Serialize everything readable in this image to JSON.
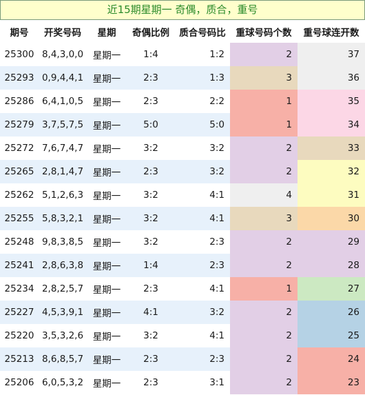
{
  "title": "近15期星期一 奇偶，质合，重号",
  "headers": [
    "期号",
    "开奖号码",
    "星期",
    "奇偶比例",
    "质合号码比",
    "重球号码个数",
    "重号球连开数"
  ],
  "rows": [
    {
      "id": "25300",
      "nums": "8,4,3,0,0",
      "day": "星期一",
      "oe": "1:4",
      "pc": "1:2",
      "rep": "2",
      "repColor": "#e2cfe6",
      "cnt": "37",
      "cntColor": "#efefef"
    },
    {
      "id": "25293",
      "nums": "0,9,4,4,1",
      "day": "星期一",
      "oe": "2:3",
      "pc": "1:3",
      "rep": "3",
      "repColor": "#e8d9bd",
      "cnt": "36",
      "cntColor": "#efefef"
    },
    {
      "id": "25286",
      "nums": "6,4,1,0,5",
      "day": "星期一",
      "oe": "2:3",
      "pc": "2:2",
      "rep": "1",
      "repColor": "#f7b0a7",
      "cnt": "35",
      "cntColor": "#fcd7e6"
    },
    {
      "id": "25279",
      "nums": "3,7,5,7,5",
      "day": "星期一",
      "oe": "5:0",
      "pc": "5:0",
      "rep": "1",
      "repColor": "#f7b0a7",
      "cnt": "34",
      "cntColor": "#fcd7e6"
    },
    {
      "id": "25272",
      "nums": "7,6,7,4,7",
      "day": "星期一",
      "oe": "3:2",
      "pc": "3:2",
      "rep": "2",
      "repColor": "#e2cfe6",
      "cnt": "33",
      "cntColor": "#e8d9bd"
    },
    {
      "id": "25265",
      "nums": "2,8,1,4,7",
      "day": "星期一",
      "oe": "2:3",
      "pc": "3:2",
      "rep": "2",
      "repColor": "#e2cfe6",
      "cnt": "32",
      "cntColor": "#fdfcc0"
    },
    {
      "id": "25262",
      "nums": "5,1,2,6,3",
      "day": "星期一",
      "oe": "3:2",
      "pc": "4:1",
      "rep": "4",
      "repColor": "#efefef",
      "cnt": "31",
      "cntColor": "#fdfcc0"
    },
    {
      "id": "25255",
      "nums": "5,8,3,2,1",
      "day": "星期一",
      "oe": "3:2",
      "pc": "4:1",
      "rep": "3",
      "repColor": "#e8d9bd",
      "cnt": "30",
      "cntColor": "#fbd8a8"
    },
    {
      "id": "25248",
      "nums": "9,8,3,8,5",
      "day": "星期一",
      "oe": "3:2",
      "pc": "2:3",
      "rep": "2",
      "repColor": "#e2cfe6",
      "cnt": "29",
      "cntColor": "#e2cfe6"
    },
    {
      "id": "25241",
      "nums": "2,8,6,3,8",
      "day": "星期一",
      "oe": "1:4",
      "pc": "2:3",
      "rep": "2",
      "repColor": "#e2cfe6",
      "cnt": "28",
      "cntColor": "#e2cfe6"
    },
    {
      "id": "25234",
      "nums": "2,8,2,5,7",
      "day": "星期一",
      "oe": "2:3",
      "pc": "4:1",
      "rep": "1",
      "repColor": "#f7b0a7",
      "cnt": "27",
      "cntColor": "#cce9c2"
    },
    {
      "id": "25227",
      "nums": "4,5,3,9,1",
      "day": "星期一",
      "oe": "4:1",
      "pc": "3:2",
      "rep": "2",
      "repColor": "#e2cfe6",
      "cnt": "26",
      "cntColor": "#b5d2e5"
    },
    {
      "id": "25220",
      "nums": "3,5,3,2,6",
      "day": "星期一",
      "oe": "3:2",
      "pc": "4:1",
      "rep": "2",
      "repColor": "#e2cfe6",
      "cnt": "25",
      "cntColor": "#b5d2e5"
    },
    {
      "id": "25213",
      "nums": "8,6,8,5,7",
      "day": "星期一",
      "oe": "2:3",
      "pc": "2:3",
      "rep": "2",
      "repColor": "#e2cfe6",
      "cnt": "24",
      "cntColor": "#f7b0a7"
    },
    {
      "id": "25206",
      "nums": "6,0,5,3,2",
      "day": "星期一",
      "oe": "2:3",
      "pc": "3:1",
      "rep": "2",
      "repColor": "#e2cfe6",
      "cnt": "23",
      "cntColor": "#f7b0a7"
    }
  ]
}
